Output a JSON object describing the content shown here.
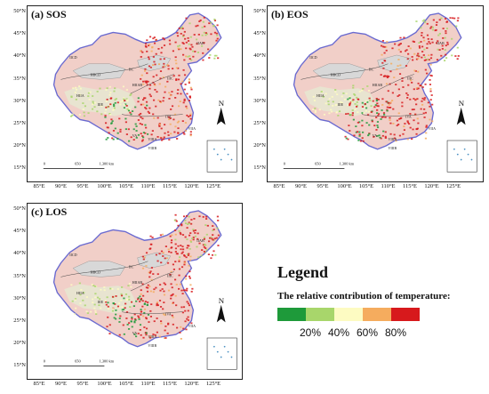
{
  "panels": [
    {
      "id": "a",
      "title": "(a) SOS"
    },
    {
      "id": "b",
      "title": "(b) EOS"
    },
    {
      "id": "c",
      "title": "(c) LOS"
    }
  ],
  "lat_labels": [
    "50°N",
    "45°N",
    "40°N",
    "35°N",
    "30°N",
    "25°N",
    "20°N",
    "15°N"
  ],
  "lon_labels": [
    "85°E",
    "90°E",
    "95°E",
    "100°E",
    "105°E",
    "110°E",
    "115°E",
    "120°E",
    "125°E"
  ],
  "north_arrow": "N",
  "scale_bar": [
    "0",
    "650",
    "1,300 km"
  ],
  "region_labels": [
    "IIAB",
    "IICD",
    "HIICD",
    "IIC",
    "HIIAB",
    "HIIA",
    "IIIC",
    "IVA",
    "VIIA",
    "VIIIA",
    "VIIIB",
    "VA",
    "IIIE"
  ],
  "legend": {
    "title": "Legend",
    "subtitle": "The relative contribution of temperature:",
    "colors": [
      "#1e9a3a",
      "#a8d66b",
      "#fdfbc2",
      "#f5ac5e",
      "#d7191c"
    ],
    "ticks": [
      "20%",
      "40%",
      "60%",
      "80%"
    ]
  }
}
